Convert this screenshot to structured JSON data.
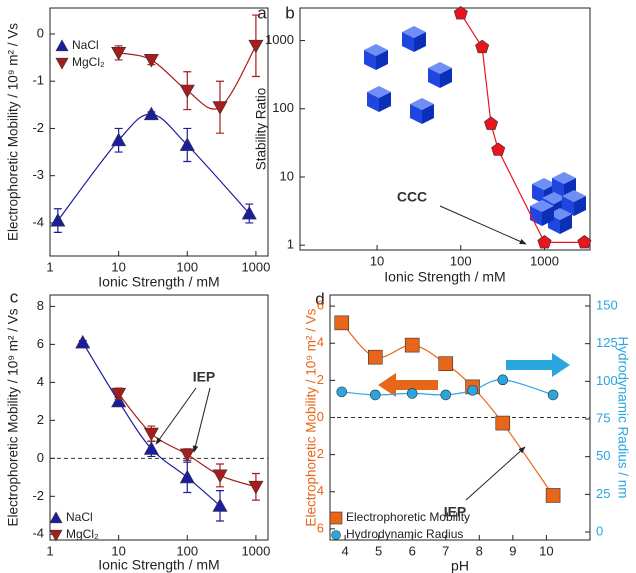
{
  "chart_data": [
    {
      "type": "scatter",
      "panel_label": "a",
      "xlabel": "Ionic Strength / mM",
      "ylabel": "Electrophoretic Mobility / 10⁹ m² / Vs",
      "xscale": "log",
      "xlim": [
        1,
        1500
      ],
      "xticks": [
        1,
        10,
        100,
        1000
      ],
      "ylim": [
        -4.7,
        0.55
      ],
      "yticks": [
        -4,
        -3,
        -2,
        -1,
        0
      ],
      "smooth": true,
      "legend": "upper left",
      "series": [
        {
          "name": "NaCl",
          "color": "#1c1ca0",
          "marker": "triangle-up",
          "x": [
            1.3,
            10,
            30,
            100,
            800
          ],
          "values": [
            -3.95,
            -2.25,
            -1.7,
            -2.35,
            -3.8
          ],
          "errors": [
            0.25,
            0.25,
            0.05,
            0.35,
            0.2
          ]
        },
        {
          "name": "MgCl₂",
          "color": "#a81c1c",
          "marker": "triangle-down",
          "x": [
            10,
            30,
            100,
            300,
            1000
          ],
          "values": [
            -0.4,
            -0.55,
            -1.2,
            -1.55,
            -0.25
          ],
          "errors": [
            0.15,
            0.1,
            0.4,
            0.55,
            0.65
          ]
        }
      ]
    },
    {
      "type": "scatter",
      "panel_label": "b",
      "xlabel": "Ionic Strength / mM",
      "ylabel": "Stability Ratio",
      "xscale": "log",
      "yscale": "log",
      "xlim": [
        1.2,
        3500
      ],
      "xticks": [
        10,
        100,
        1000
      ],
      "ylim": [
        0.85,
        3000
      ],
      "yticks": [
        1,
        10,
        100,
        1000
      ],
      "smooth": false,
      "annotations": [
        "CCC"
      ],
      "series": [
        {
          "color": "#e8141e",
          "marker": "pentagon",
          "x": [
            100,
            180,
            230,
            280,
            1000,
            3000
          ],
          "values": [
            2500,
            800,
            60,
            25,
            1.1,
            1.1
          ]
        }
      ]
    },
    {
      "type": "scatter",
      "panel_label": "c",
      "xlabel": "Ionic Strength / mM",
      "ylabel": "Electrophoretic Mobility / 10⁹ m² / Vs",
      "xscale": "log",
      "xlim": [
        1,
        1500
      ],
      "xticks": [
        1,
        10,
        100,
        1000
      ],
      "ylim": [
        -4.3,
        8.6
      ],
      "yticks": [
        -4,
        -2,
        0,
        2,
        4,
        6,
        8
      ],
      "reference_line": 0,
      "smooth": true,
      "legend": "lower left",
      "annotations": [
        "IEP"
      ],
      "series": [
        {
          "name": "NaCl",
          "color": "#1c1ca0",
          "marker": "triangle-up",
          "x": [
            3,
            10,
            30,
            100,
            300
          ],
          "values": [
            6.1,
            3.0,
            0.5,
            -1.0,
            -2.5
          ],
          "errors": [
            0.1,
            0.2,
            0.4,
            0.8,
            0.8
          ]
        },
        {
          "name": "MgCl₂",
          "color": "#a81c1c",
          "marker": "triangle-down",
          "x": [
            10,
            30,
            100,
            300,
            1000
          ],
          "values": [
            3.4,
            1.3,
            0.2,
            -0.9,
            -1.5
          ],
          "errors": [
            0.3,
            0.4,
            0.3,
            0.6,
            0.7
          ]
        }
      ]
    },
    {
      "type": "line",
      "panel_label": "d",
      "xlabel": "pH",
      "ylabel": "Electrophoretic Mobility / 10⁹ m² / Vs",
      "y2label": "Hydrodynamic Radius / nm",
      "xlim": [
        3.55,
        11.3
      ],
      "xticks": [
        4,
        5,
        6,
        7,
        8,
        9,
        10
      ],
      "ylim": [
        -6.6,
        6.6
      ],
      "yticks": [
        {
          "value": -6,
          "label": "6"
        },
        {
          "value": -4,
          "label": "4"
        },
        {
          "value": -2,
          "label": "2"
        },
        0,
        2,
        4,
        6
      ],
      "y2lim": [
        -5.3,
        157.3
      ],
      "y2ticks": [
        0,
        25,
        50,
        75,
        100,
        125,
        150
      ],
      "reference_line": 0,
      "smooth": true,
      "legend": "lower left",
      "annotations": [
        "IEP"
      ],
      "series": [
        {
          "name": "Electrophoretic Mobility",
          "color": "#e8661a",
          "marker": "square",
          "x": [
            3.9,
            4.9,
            6.0,
            7.0,
            7.8,
            8.7,
            10.2
          ],
          "values": [
            5.1,
            3.25,
            3.9,
            2.9,
            1.65,
            -0.3,
            -4.2
          ]
        },
        {
          "name": "Hydrodynamic Radius",
          "color": "#2aa6df",
          "marker": "circle",
          "axis": "y2",
          "x": [
            3.9,
            4.9,
            6.0,
            7.0,
            7.8,
            8.7,
            10.2
          ],
          "values": [
            93,
            91,
            92,
            91,
            94,
            101,
            91
          ]
        }
      ]
    }
  ]
}
